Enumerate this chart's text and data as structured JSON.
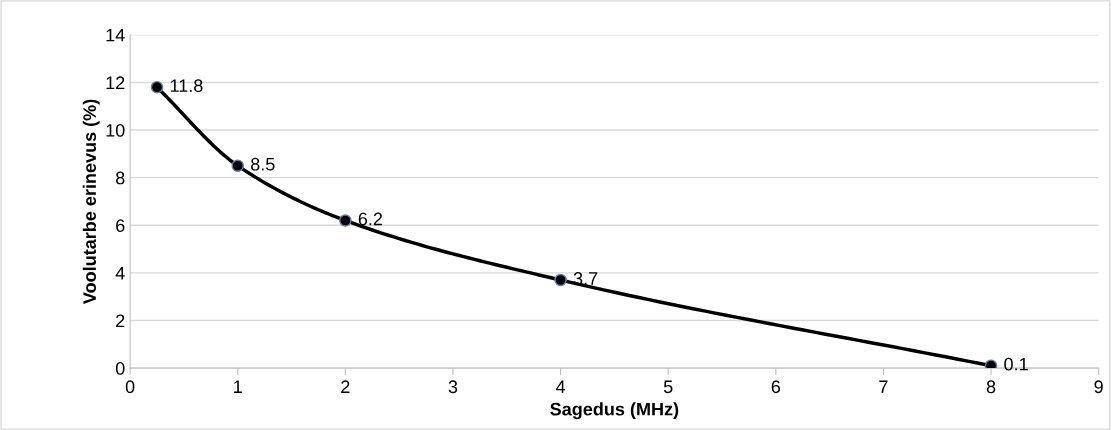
{
  "chart_data": {
    "type": "line",
    "xlabel": "Sagedus (MHz)",
    "ylabel": "Voolutarbe erinevus (%)",
    "x": [
      0.25,
      1,
      2,
      4,
      8
    ],
    "series": [
      {
        "color": "#000000",
        "values": [
          11.8,
          8.5,
          6.2,
          3.7,
          0.1
        ]
      }
    ],
    "xlim": [
      0,
      9
    ],
    "xticks": [
      0,
      1,
      2,
      3,
      4,
      5,
      6,
      7,
      8,
      9
    ],
    "ylim": [
      0,
      14
    ],
    "yticks": [
      0,
      2,
      4,
      6,
      8,
      10,
      12,
      14
    ],
    "grid": "y",
    "marker": "circle",
    "line_style": "solid",
    "data_labels": true
  }
}
